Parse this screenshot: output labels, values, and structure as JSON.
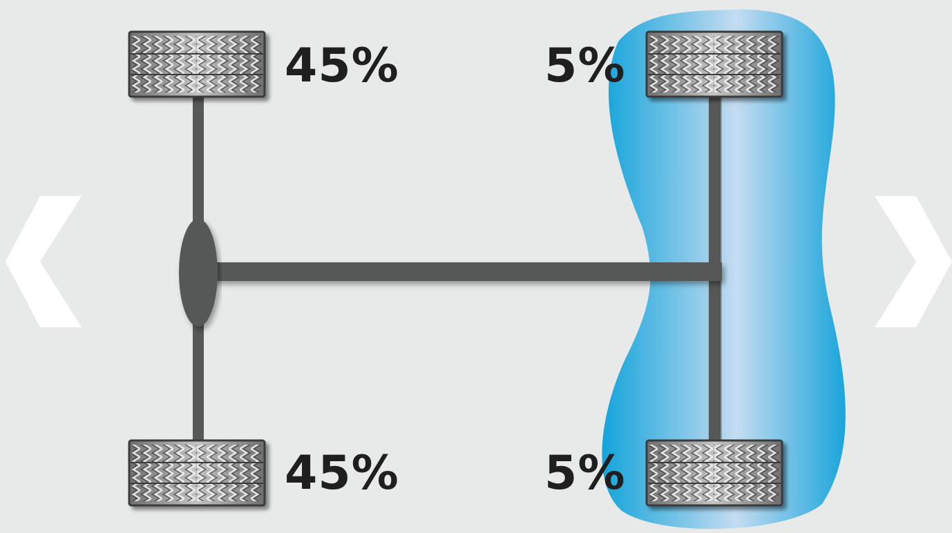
{
  "colors": {
    "background": "#e8e9e9",
    "drivetrain": "#575859",
    "highlight": "#33aede",
    "highlight_light": "#c9def2",
    "tire": "#8c8c8c",
    "text": "#1f1f1f",
    "nav_arrow": "#ffffff"
  },
  "wheels": {
    "front_left": {
      "label": "45%",
      "value": 45
    },
    "rear_left": {
      "label": "45%",
      "value": 45
    },
    "front_right": {
      "label": "5%",
      "value": 5
    },
    "rear_right": {
      "label": "5%",
      "value": 5
    }
  },
  "highlighted_axle": "right",
  "nav": {
    "prev_icon": "chevron-left-icon",
    "next_icon": "chevron-right-icon"
  }
}
